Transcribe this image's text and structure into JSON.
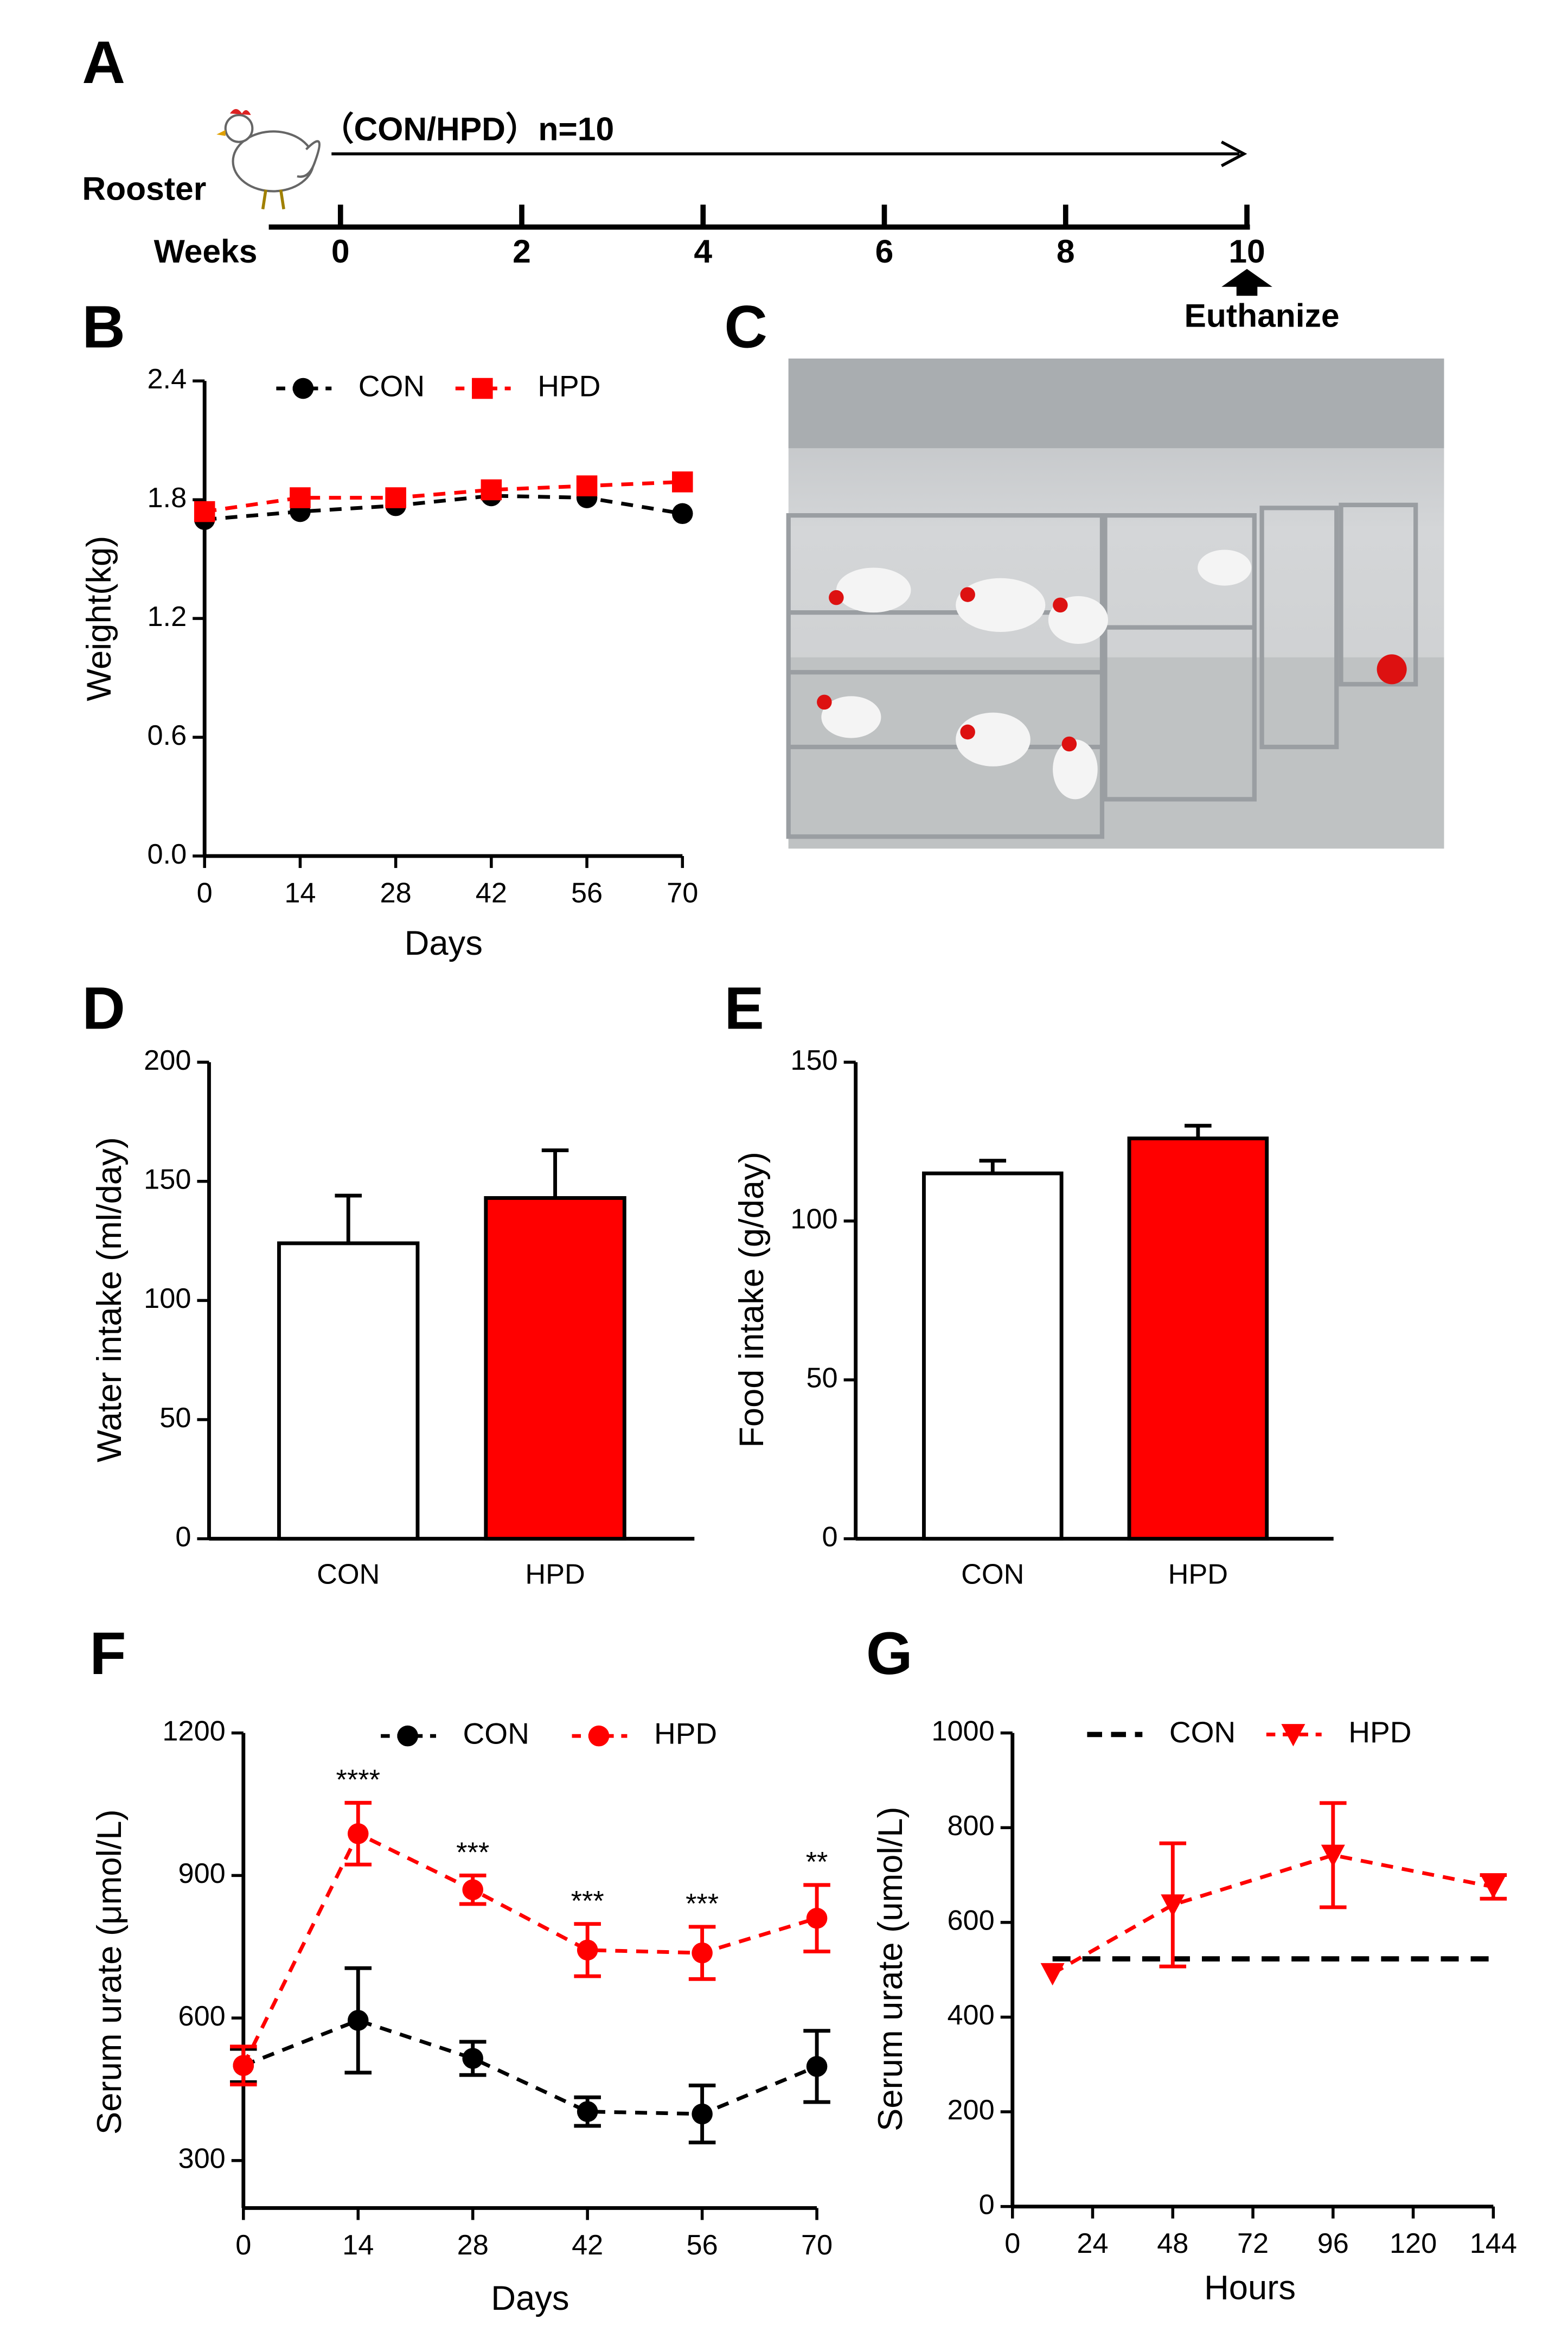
{
  "timeline": {
    "panel": "A",
    "group": "（CON/HPD）n=10",
    "subject": "Rooster",
    "axis_label": "Weeks",
    "ticks": [
      0,
      2,
      4,
      6,
      8,
      10
    ],
    "event": "Euthanize"
  },
  "photo": {
    "panel": "C"
  },
  "chart_data": [
    {
      "type": "line",
      "panel": "B",
      "x_label": "Days",
      "y_label": "Weight(kg)",
      "x": [
        0,
        14,
        28,
        42,
        56,
        70
      ],
      "xlim": [
        0,
        70
      ],
      "xticks": [
        0,
        14,
        28,
        42,
        56,
        70
      ],
      "ylim": [
        0,
        2.4
      ],
      "yticks": [
        {
          "value": 0,
          "label": "0.0"
        },
        0.6,
        1.2,
        1.8,
        2.4
      ],
      "legend": "top",
      "series": [
        {
          "name": "CON",
          "color": "#000000",
          "marker": "circle",
          "linestyle": "dashed",
          "values": [
            1.7,
            1.74,
            1.77,
            1.82,
            1.81,
            1.73
          ]
        },
        {
          "name": "HPD",
          "color": "#ff0000",
          "marker": "square",
          "linestyle": "dashed",
          "values": [
            1.74,
            1.81,
            1.81,
            1.85,
            1.87,
            1.89
          ]
        }
      ]
    },
    {
      "type": "bar",
      "panel": "D",
      "y_label": "Water intake (ml/day)",
      "categories": [
        "CON",
        "HPD"
      ],
      "values": [
        124,
        143
      ],
      "errors": [
        20,
        20
      ],
      "colors": [
        "#ffffff",
        "#ff0000"
      ],
      "ylim": [
        0,
        200
      ],
      "yticks": [
        0,
        50,
        100,
        150,
        200
      ]
    },
    {
      "type": "bar",
      "panel": "E",
      "y_label": "Food intake (g/day)",
      "categories": [
        "CON",
        "HPD"
      ],
      "values": [
        115,
        126
      ],
      "errors": [
        4,
        4
      ],
      "colors": [
        "#ffffff",
        "#ff0000"
      ],
      "ylim": [
        0,
        150
      ],
      "yticks": [
        0,
        50,
        100,
        150
      ]
    },
    {
      "type": "line",
      "panel": "F",
      "x_label": "Days",
      "y_label": "Serum urate (μmol/L)",
      "x": [
        0,
        14,
        28,
        42,
        56,
        70
      ],
      "xlim": [
        0,
        70
      ],
      "xticks": [
        0,
        14,
        28,
        42,
        56,
        70
      ],
      "ylim": [
        200,
        1200
      ],
      "yticks": [
        300,
        600,
        900,
        1200
      ],
      "legend": "top",
      "annotations": [
        null,
        "****",
        "***",
        "***",
        "***",
        "**"
      ],
      "series": [
        {
          "name": "CON",
          "color": "#000000",
          "marker": "circle",
          "linestyle": "dashed",
          "values": [
            500,
            595,
            515,
            403,
            398,
            498
          ],
          "errors": [
            35,
            110,
            35,
            30,
            60,
            75
          ]
        },
        {
          "name": "HPD",
          "color": "#ff0000",
          "marker": "circle",
          "linestyle": "dashed",
          "values": [
            500,
            988,
            870,
            743,
            737,
            810
          ],
          "errors": [
            40,
            65,
            30,
            55,
            55,
            70
          ]
        }
      ]
    },
    {
      "type": "line",
      "panel": "G",
      "x_label": "Hours",
      "y_label": "Serum urate (umol/L)",
      "xlim": [
        0,
        144
      ],
      "xticks": [
        0,
        24,
        48,
        72,
        96,
        120,
        144
      ],
      "ylim": [
        0,
        1000
      ],
      "yticks": [
        0,
        200,
        400,
        600,
        800,
        1000
      ],
      "legend": "top",
      "series": [
        {
          "name": "CON",
          "color": "#000000",
          "marker": null,
          "linestyle": "dashed",
          "x": [
            12,
            48,
            96,
            144
          ],
          "values": [
            523,
            523,
            523,
            523
          ]
        },
        {
          "name": "HPD",
          "color": "#ff0000",
          "marker": "triangle-down",
          "linestyle": "dashed",
          "x": [
            12,
            48,
            96,
            144
          ],
          "values": [
            492,
            637,
            742,
            675
          ],
          "errors": [
            null,
            130,
            110,
            25
          ]
        }
      ]
    }
  ]
}
